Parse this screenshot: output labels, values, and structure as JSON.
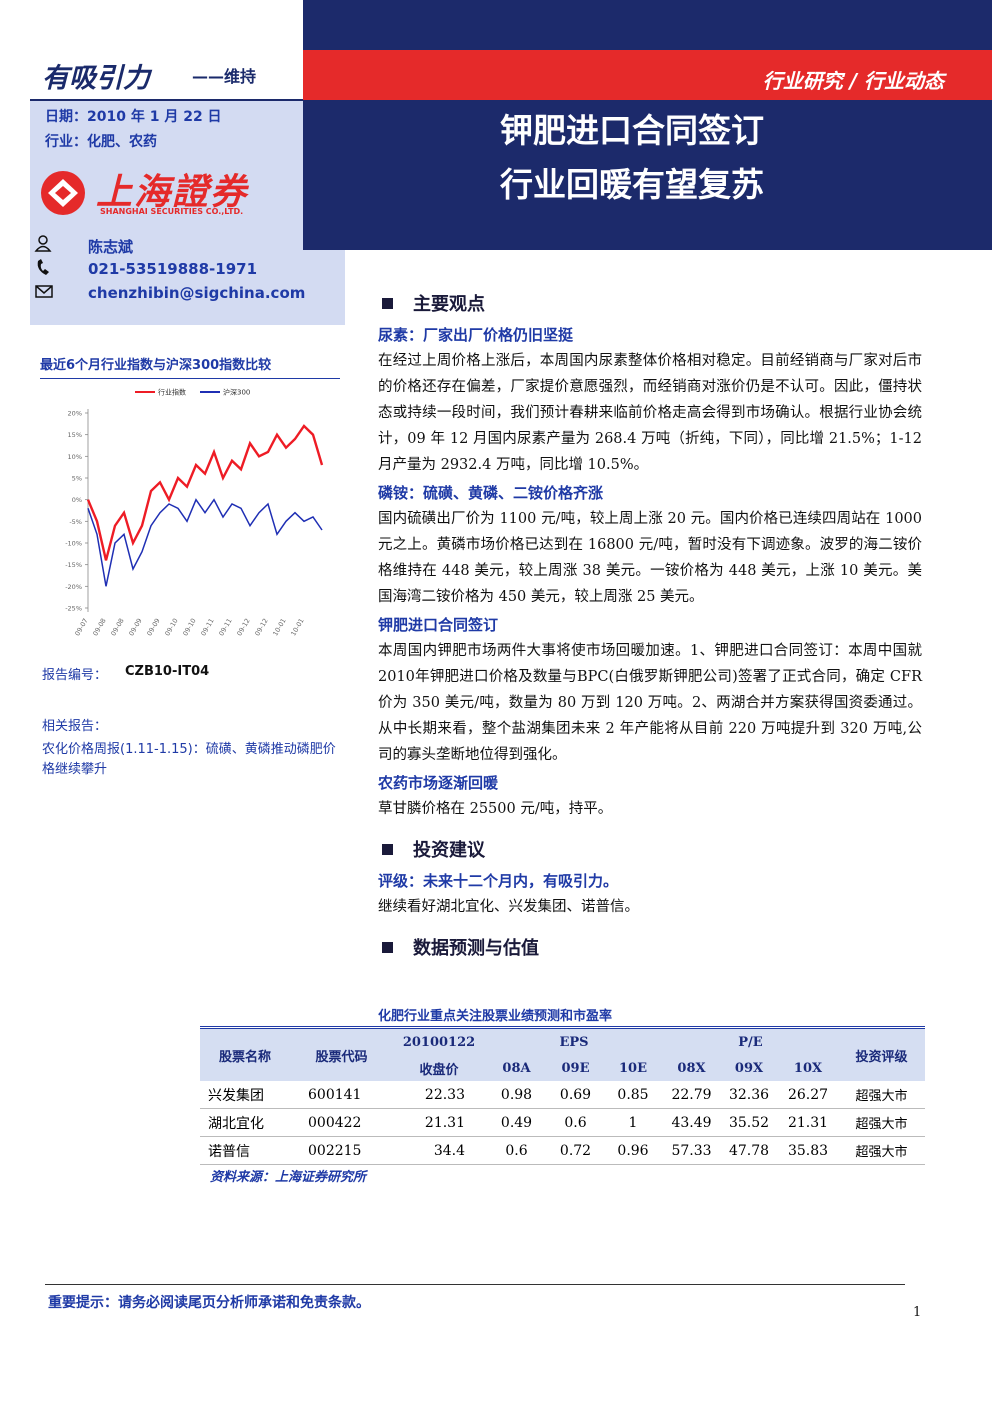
{
  "header": {
    "rating": "有吸引力",
    "rating_note": "——维持",
    "date": "日期：2010 年 1 月 22 日",
    "industry": "行业：化肥、农药",
    "category": "行业研究 / 行业动态",
    "title_lines": [
      "钾肥进口合同签订",
      "行业回暖有望复苏"
    ],
    "logo_cn": "上海證券",
    "logo_en": "SHANGHAI SECURITIES CO.,LTD.",
    "analyst": {
      "name": "陈志斌",
      "phone": "021-53519888-1971",
      "email": "chenzhibin@sigchina.com"
    }
  },
  "chart_data": {
    "type": "line",
    "title": "最近6个月行业指数与沪深300指数比较",
    "categories": [
      "09-07",
      null,
      "09-08",
      null,
      "09-08",
      null,
      "09-09",
      null,
      "09-09",
      null,
      "09-10",
      null,
      "09-10",
      null,
      "09-11",
      null,
      "09-11",
      null,
      "09-12",
      null,
      "09-12",
      null,
      "10-01",
      null,
      "10-01",
      null,
      null
    ],
    "series": [
      {
        "name": "行业指数",
        "color": "#ee1c25",
        "values": [
          0,
          -5,
          -14,
          -6,
          -3,
          -10,
          -6,
          2,
          4,
          0,
          5,
          3,
          8,
          6,
          11,
          5,
          9,
          7,
          13,
          10,
          11,
          15,
          12,
          14,
          17,
          15,
          8
        ]
      },
      {
        "name": "沪深300",
        "color": "#1f2fb4",
        "values": [
          -2,
          -8,
          -20,
          -10,
          -8,
          -16,
          -12,
          -6,
          -3,
          -1,
          -2,
          -5,
          0,
          -3,
          0,
          -4,
          -1,
          -2,
          -6,
          -3,
          -1,
          -8,
          -5,
          -3,
          -5,
          -4,
          -7
        ]
      }
    ],
    "ylim": [
      -25,
      20
    ],
    "yticks": [
      {
        "value": 20,
        "label": "20%"
      },
      {
        "value": 15,
        "label": "15%"
      },
      {
        "value": 10,
        "label": "10%"
      },
      {
        "value": 5,
        "label": "5%"
      },
      {
        "value": 0,
        "label": "0%"
      },
      {
        "value": -5,
        "label": "-5%"
      },
      {
        "value": -10,
        "label": "-10%"
      },
      {
        "value": -15,
        "label": "-15%"
      },
      {
        "value": -20,
        "label": "-20%"
      },
      {
        "value": -25,
        "label": "-25%"
      }
    ]
  },
  "sidebar": {
    "report_no_label": "报告编号：",
    "report_no": "CZB10-IT04",
    "related_label": "相关报告：",
    "related_text": "农化价格周报(1.11-1.15)：硫磺、黄磷推动磷肥价格继续攀升"
  },
  "body": {
    "sections": [
      {
        "heading": "主要观点",
        "blocks": [
          {
            "subheading": "尿素：厂家出厂价格仍旧坚挺",
            "text": "在经过上周价格上涨后，本周国内尿素整体价格相对稳定。目前经销商与厂家对后市的价格还存在偏差，厂家提价意愿强烈，而经销商对涨价仍是不认可。因此，僵持状态或持续一段时间，我们预计春耕来临前价格走高会得到市场确认。根据行业协会统计，09 年 12 月国内尿素产量为 268.4 万吨（折纯，下同），同比增 21.5%；1-12 月产量为 2932.4 万吨，同比增 10.5%。"
          },
          {
            "subheading": "磷铵：硫磺、黄磷、二铵价格齐涨",
            "text": "国内硫磺出厂价为 1100 元/吨，较上周上涨 20 元。国内价格已连续四周站在 1000 元之上。黄磷市场价格已达到在 16800 元/吨，暂时没有下调迹象。波罗的海二铵价格维持在 448 美元，较上周涨 38 美元。一铵价格为 448 美元，上涨 10 美元。美国海湾二铵价格为 450 美元，较上周涨 25 美元。"
          },
          {
            "subheading": "钾肥进口合同签订",
            "text": "本周国内钾肥市场两件大事将使市场回暖加速。1、钾肥进口合同签订：本周中国就2010年钾肥进口价格及数量与BPC(白俄罗斯钾肥公司)签署了正式合同，确定 CFR 价为 350 美元/吨，数量为 80 万到 120 万吨。2、两湖合并方案获得国资委通过。从中长期来看，整个盐湖集团未来 2 年产能将从目前 220 万吨提升到 320 万吨,公司的寡头垄断地位得到强化。"
          },
          {
            "subheading": "农药市场逐渐回暖",
            "text": "草甘膦价格在 25500 元/吨，持平。"
          }
        ]
      },
      {
        "heading": "投资建议",
        "blocks": [
          {
            "subheading": "评级：未来十二个月内，有吸引力。",
            "text": "继续看好湖北宜化、兴发集团、诺普信。"
          }
        ]
      },
      {
        "heading": "数据预测与估值",
        "blocks": []
      }
    ]
  },
  "table": {
    "caption": "化肥行业重点关注股票业绩预测和市盈率",
    "header_top": [
      "股票名称",
      "股票代码",
      "20100122",
      "EPS",
      "P/E",
      "投资评级"
    ],
    "header_sub": [
      "收盘价",
      "08A",
      "09E",
      "10E",
      "08X",
      "09X",
      "10X"
    ],
    "rows": [
      [
        "兴发集团",
        "600141",
        22.33,
        0.98,
        0.69,
        0.85,
        22.79,
        32.36,
        26.27,
        "超强大市"
      ],
      [
        "湖北宜化",
        "000422",
        21.31,
        0.49,
        0.6,
        1,
        43.49,
        35.52,
        21.31,
        "超强大市"
      ],
      [
        "诺普信",
        "002215",
        34.4,
        0.6,
        0.72,
        0.96,
        57.33,
        47.78,
        35.83,
        "超强大市"
      ]
    ],
    "source": "资料来源：上海证券研究所"
  },
  "footer": {
    "notice": "重要提示：请务必阅读尾页分析师承诺和免责条款。",
    "page": 1
  }
}
